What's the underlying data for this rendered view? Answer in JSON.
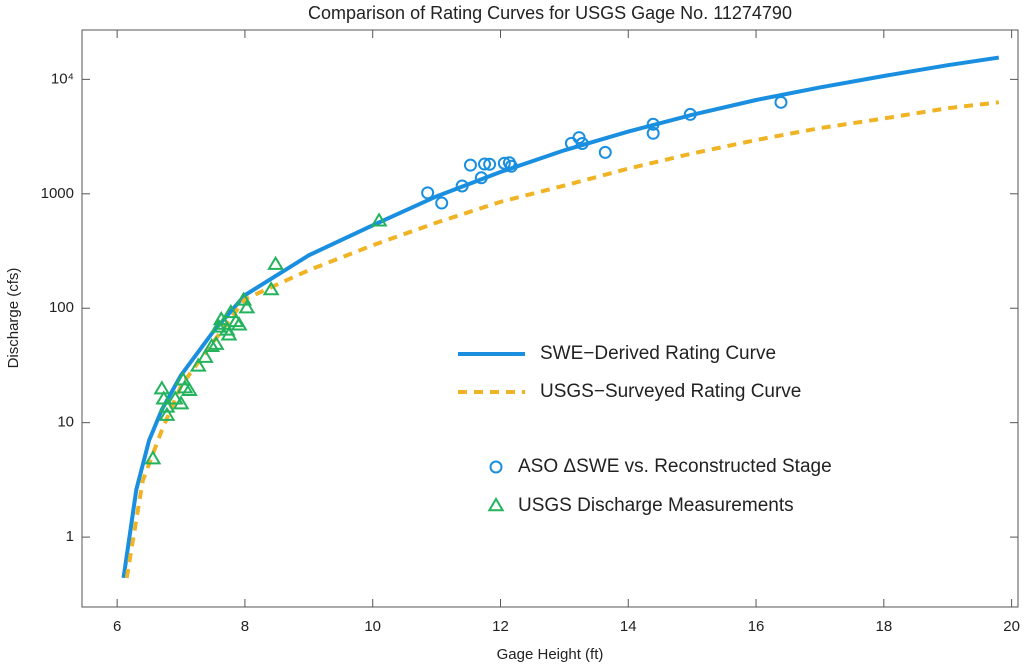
{
  "chart_data": {
    "type": "scatter",
    "title": "Comparison of Rating Curves for USGS Gage No. 11274790",
    "x_label": "Gage Height (ft)",
    "y_label": "Discharge (cfs)",
    "xlim": [
      5.45,
      20.1
    ],
    "ylim": [
      0.245,
      27000
    ],
    "yscale": "log",
    "xticks": [
      6,
      8,
      10,
      12,
      14,
      16,
      18,
      20
    ],
    "yticks": [
      1,
      10,
      100,
      1000,
      {
        "value": 10000,
        "label": "10⁴"
      }
    ],
    "series": [
      {
        "name": "SWE−Derived Rating Curve",
        "type": "line",
        "style": "solid",
        "color": "#1a8fe0",
        "x": [
          6.1,
          6.3,
          6.5,
          6.7,
          7.0,
          7.5,
          8,
          9,
          10,
          11,
          12,
          13,
          14,
          15,
          16,
          17,
          18,
          19,
          19.8
        ],
        "values": [
          0.44,
          2.6,
          7,
          13,
          26,
          62,
          130,
          290,
          530,
          950,
          1550,
          2400,
          3500,
          4900,
          6600,
          8500,
          10700,
          13300,
          15500
        ]
      },
      {
        "name": "USGS−Surveyed Rating Curve",
        "type": "line",
        "style": "dashed",
        "color": "#f0b323",
        "x": [
          6.15,
          6.4,
          6.7,
          7,
          8,
          9,
          10,
          11,
          12,
          13,
          14,
          15,
          16,
          17,
          18,
          19,
          19.8
        ],
        "values": [
          0.44,
          3.1,
          8.6,
          21,
          120,
          215,
          355,
          560,
          850,
          1180,
          1660,
          2250,
          2950,
          3750,
          4550,
          5600,
          6300
        ]
      },
      {
        "name": "ASO ΔSWE vs. Reconstructed Stage",
        "type": "scatter",
        "marker": "circle",
        "color": "#1a8fe0",
        "x": [
          10.86,
          11.08,
          11.4,
          11.53,
          11.7,
          11.75,
          11.83,
          12.06,
          12.14,
          12.17,
          13.11,
          13.23,
          13.28,
          13.64,
          14.39,
          14.39,
          14.97,
          16.39
        ],
        "values": [
          1020,
          830,
          1170,
          1780,
          1380,
          1820,
          1810,
          1850,
          1870,
          1740,
          2760,
          3100,
          2750,
          2300,
          4050,
          3380,
          4940,
          6300
        ]
      },
      {
        "name": "USGS Discharge Measurements",
        "type": "scatter",
        "marker": "triangle",
        "color": "#22b35c",
        "x": [
          6.56,
          6.7,
          6.73,
          6.78,
          6.78,
          6.91,
          7.0,
          7.03,
          7.06,
          7.13,
          7.27,
          7.38,
          7.48,
          7.55,
          7.59,
          7.63,
          7.67,
          7.72,
          7.75,
          7.78,
          7.86,
          7.91,
          7.98,
          8.03,
          8.41,
          8.48,
          10.1
        ],
        "values": [
          4.8,
          19.6,
          16,
          13.6,
          11.5,
          16,
          14.5,
          23.5,
          20,
          19,
          31,
          37,
          46,
          48,
          68,
          79,
          72,
          64,
          58,
          91,
          76,
          71,
          117,
          100,
          144,
          240,
          575
        ]
      }
    ]
  }
}
